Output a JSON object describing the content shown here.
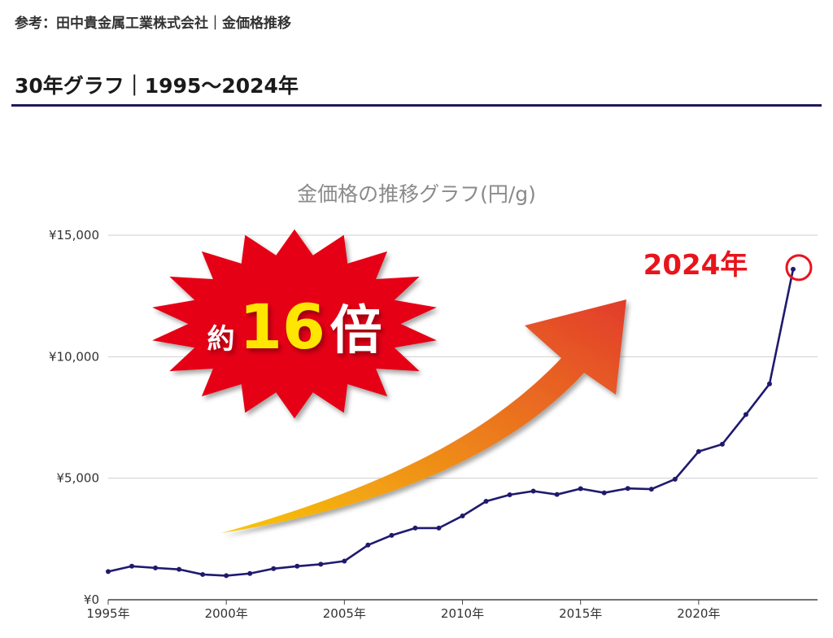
{
  "header": {
    "source_text": "参考：田中貴金属工業株式会社｜金価格推移",
    "section_title": "30年グラフ｜1995〜2024年"
  },
  "chart_data": {
    "type": "line",
    "title": "金価格の推移グラフ(円/g)",
    "x": [
      1995,
      1996,
      1997,
      1998,
      1999,
      2000,
      2001,
      2002,
      2003,
      2004,
      2005,
      2006,
      2007,
      2008,
      2009,
      2010,
      2011,
      2012,
      2013,
      2014,
      2015,
      2016,
      2017,
      2018,
      2019,
      2020,
      2021,
      2022,
      2023,
      2024
    ],
    "values": [
      1160,
      1380,
      1310,
      1250,
      1040,
      990,
      1080,
      1280,
      1380,
      1460,
      1590,
      2250,
      2650,
      2950,
      2950,
      3450,
      4050,
      4320,
      4470,
      4330,
      4570,
      4400,
      4580,
      4550,
      4960,
      6100,
      6400,
      7620,
      8880,
      13600
    ],
    "ylim": [
      0,
      15000
    ],
    "y_ticks": [
      0,
      5000,
      10000,
      15000
    ],
    "y_tick_labels": [
      "¥0",
      "¥5,000",
      "¥10,000",
      "¥15,000"
    ],
    "x_ticks": [
      1995,
      2000,
      2005,
      2010,
      2015,
      2020
    ],
    "x_tick_labels": [
      "1995年",
      "2000年",
      "2005年",
      "2010年",
      "2015年",
      "2020年"
    ],
    "grid": true,
    "line_color": "#1f1a6e",
    "annotations": {
      "burst_prefix": "約",
      "burst_number": "16",
      "burst_suffix": "倍",
      "highlight_label": "2024年",
      "burst_color": "#e50012",
      "number_color": "#ffe600",
      "highlight_color": "#e8141c",
      "arrow_gradient": [
        "#f8c70a",
        "#e23c2c"
      ]
    }
  }
}
